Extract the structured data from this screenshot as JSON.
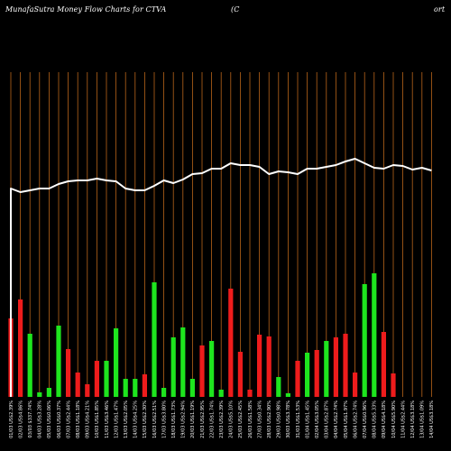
{
  "header": {
    "title_left": "MunafaSutra  Money Flow  Charts for CTVA",
    "title_mid": "(C",
    "title_right": "ort"
  },
  "colors": {
    "background": "#000000",
    "grid": "#b8651a",
    "up": "#1ee51e",
    "down": "#ee1c1c",
    "line": "#ffffff"
  },
  "chart_data": {
    "type": "bar",
    "grid": true,
    "categories": [
      "01/03 US$2.39%",
      "02/03 US$4.86%",
      "03/03 $337.74%",
      "04/03 US$3.28%",
      "05/03 US$0.06%",
      "06/03 US$0.37%",
      "07/03 US$2.44%",
      "08/03 US$1.18%",
      "09/03 US$4.21%",
      "10/03 US$1.85%",
      "11/03 US$3.46%",
      "12/03 US$1.47%",
      "13/03 US$2.05%",
      "14/03 US$4.25%",
      "15/03 US$2.30%",
      "16/03 US$2.51%",
      "17/03 US$3.80%",
      "18/03 US$1.73%",
      "19/03 US$2.94%",
      "20/03 US$1.19%",
      "21/03 US$2.95%",
      "22/03 US$1.74%",
      "23/03 US$2.39%",
      "24/03 US$5.10%",
      "25/03 US$2.45%",
      "26/03 US$1.58%",
      "27/03 US$0.34%",
      "28/03 US$2.90%",
      "29/03 US$0.98%",
      "30/03 US$3.78%",
      "31/03 US$1.53%",
      "01/04 US$1.45%",
      "02/04 US$3.05%",
      "03/04 US$2.87%",
      "04/04 US$2.74%",
      "05/04 US$1.97%",
      "06/04 US$2.74%",
      "07/04 US$0.96%",
      "08/04 US$5.33%",
      "09/04 US$4.18%",
      "10/04 US$5.90%",
      "11/04 US$2.44%",
      "12/04 US$3.18%",
      "13/04 US$1.09%",
      "14/04 US$3.18%"
    ],
    "bar_color": [
      "down",
      "down",
      "up",
      "up",
      "up",
      "up",
      "down",
      "down",
      "down",
      "down",
      "up",
      "up",
      "up",
      "up",
      "down",
      "up",
      "up",
      "up",
      "up",
      "up",
      "down",
      "up",
      "up",
      "down",
      "down",
      "down",
      "down",
      "down",
      "up",
      "up",
      "down",
      "up",
      "down",
      "up",
      "down",
      "down",
      "down",
      "up",
      "up",
      "down",
      "down",
      "up",
      "down",
      "up",
      "down"
    ],
    "values": [
      87,
      108,
      70,
      5,
      10,
      79,
      53,
      27,
      14,
      40,
      40,
      76,
      20,
      20,
      25,
      127,
      10,
      66,
      77,
      20,
      57,
      62,
      8,
      120,
      50,
      8,
      69,
      67,
      22,
      4,
      40,
      49,
      52,
      62,
      66,
      70,
      27,
      125,
      137,
      72,
      26,
      0,
      0,
      0,
      0
    ],
    "line": [
      209,
      213,
      211,
      209,
      209,
      204,
      201,
      200,
      200,
      198,
      200,
      201,
      209,
      211,
      211,
      206,
      200,
      203,
      199,
      193,
      192,
      187,
      187,
      181,
      183,
      183,
      185,
      193,
      190,
      191,
      193,
      187,
      187,
      185,
      183,
      179,
      176,
      181,
      186,
      187,
      183,
      184,
      188,
      186,
      189
    ],
    "ylim": [
      0,
      400
    ]
  }
}
